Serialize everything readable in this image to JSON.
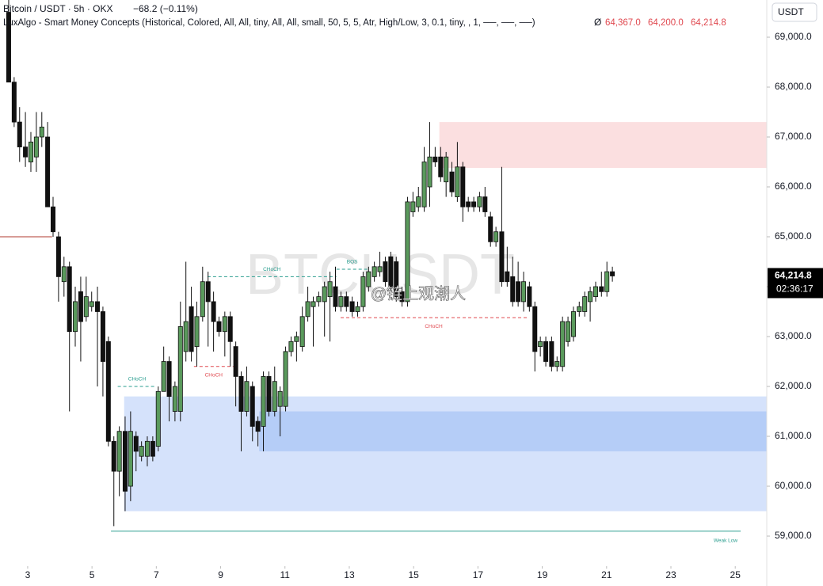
{
  "chart_data": {
    "type": "candlestick",
    "symbol": "Bitcoin / USDT · 5h · OKX",
    "change": "−68.2 (−0.11%)",
    "indicator": "LuxAlgo - Smart Money Concepts (Historical, Colored, All, All, tiny, All, All, small, 50, 5, 5, Atr, High/Low, 3, 0.1, tiny, , 1, ──, ──, ──)",
    "indicator_sign": "Ø",
    "indicator_values": [
      "64,367.0",
      "64,200.0",
      "64,214.8"
    ],
    "currency": "USDT",
    "watermark": "BTCUSDT",
    "credit": "@链上观潮人",
    "up_color": "#5a9a5c",
    "down_color": "#111111",
    "x": [
      2.41,
      2.58,
      2.75,
      2.93,
      3.1,
      3.27,
      3.44,
      3.62,
      3.79,
      3.96,
      4.13,
      4.3,
      4.48,
      4.65,
      4.82,
      4.99,
      5.17,
      5.34,
      5.51,
      5.68,
      5.85,
      6.03,
      6.2,
      6.37,
      6.54,
      6.72,
      6.89,
      7.06,
      7.23,
      7.4,
      7.58,
      7.75,
      7.92,
      8.09,
      8.26,
      8.44,
      8.61,
      8.78,
      8.95,
      9.13,
      9.3,
      9.47,
      9.64,
      9.81,
      9.99,
      10.16,
      10.33,
      10.5,
      10.68,
      10.85,
      11.02,
      11.19,
      11.36,
      11.54,
      11.71,
      11.88,
      12.05,
      12.23,
      12.4,
      12.57,
      12.74,
      12.91,
      13.09,
      13.26,
      13.43,
      13.6,
      13.78,
      13.95,
      14.12,
      14.29,
      14.46,
      14.64,
      14.81,
      14.98,
      15.15,
      15.33,
      15.5,
      15.67,
      15.84,
      16.01,
      16.19,
      16.36,
      16.53,
      16.7,
      16.87,
      17.05,
      17.22,
      17.39,
      17.56,
      17.74,
      17.91,
      18.08,
      18.25,
      18.42,
      18.6,
      18.77,
      18.94,
      19.11,
      19.29,
      19.46,
      19.63,
      19.8,
      19.97,
      20.15,
      20.32,
      20.49,
      20.66,
      20.84,
      21.01,
      21.18
    ],
    "ohlc": [
      [
        69500,
        69746,
        68100,
        68100
      ],
      [
        68100,
        68200,
        67200,
        67300
      ],
      [
        67300,
        67600,
        66500,
        66800
      ],
      [
        66800,
        67500,
        66400,
        66600
      ],
      [
        66500,
        67100,
        66300,
        66900
      ],
      [
        66600,
        67500,
        66300,
        67000
      ],
      [
        67000,
        67500,
        66800,
        67200
      ],
      [
        67000,
        67300,
        65600,
        65600
      ],
      [
        65600,
        65800,
        65000,
        65100
      ],
      [
        65000,
        65100,
        63700,
        64200
      ],
      [
        64100,
        64600,
        63800,
        64400
      ],
      [
        64400,
        64500,
        61500,
        63100
      ],
      [
        63100,
        64000,
        62800,
        63700
      ],
      [
        63900,
        64200,
        62500,
        63300
      ],
      [
        63400,
        64200,
        63300,
        63800
      ],
      [
        63600,
        63900,
        63500,
        63700
      ],
      [
        63700,
        64000,
        62000,
        63500
      ],
      [
        63500,
        63600,
        61800,
        62500
      ],
      [
        62900,
        63000,
        60800,
        60900
      ],
      [
        60900,
        61000,
        59200,
        60300
      ],
      [
        60300,
        61200,
        59800,
        61100
      ],
      [
        61100,
        61400,
        59500,
        59900
      ],
      [
        60000,
        61500,
        59700,
        61100
      ],
      [
        61000,
        61100,
        60300,
        60700
      ],
      [
        60600,
        60900,
        60500,
        60800
      ],
      [
        60600,
        61000,
        60400,
        60900
      ],
      [
        60900,
        61000,
        60500,
        60600
      ],
      [
        60800,
        62000,
        60700,
        61900
      ],
      [
        61900,
        62800,
        61900,
        62500
      ],
      [
        62500,
        62600,
        61300,
        61800
      ],
      [
        61500,
        62100,
        61300,
        62000
      ],
      [
        61500,
        63700,
        61300,
        63200
      ],
      [
        62700,
        64500,
        62500,
        63300
      ],
      [
        63600,
        64000,
        62500,
        62700
      ],
      [
        62800,
        63700,
        62400,
        63400
      ],
      [
        63400,
        64400,
        63300,
        64100
      ],
      [
        64100,
        64300,
        62800,
        63700
      ],
      [
        63700,
        63900,
        62700,
        63300
      ],
      [
        63300,
        63400,
        63000,
        63100
      ],
      [
        63100,
        63500,
        62600,
        63400
      ],
      [
        63400,
        63500,
        62400,
        62900
      ],
      [
        62800,
        62900,
        61600,
        62200
      ],
      [
        62200,
        62300,
        60700,
        61500
      ],
      [
        61500,
        62400,
        61400,
        62100
      ],
      [
        62000,
        62100,
        60900,
        61200
      ],
      [
        61300,
        61400,
        60800,
        61100
      ],
      [
        61200,
        62300,
        60700,
        62200
      ],
      [
        62200,
        62300,
        61400,
        61500
      ],
      [
        61500,
        62400,
        61400,
        62100
      ],
      [
        61600,
        62000,
        61000,
        61900
      ],
      [
        61600,
        62800,
        61500,
        62700
      ],
      [
        62700,
        63000,
        62600,
        62900
      ],
      [
        62900,
        63100,
        62500,
        63000
      ],
      [
        62800,
        63600,
        62700,
        63400
      ],
      [
        63400,
        64000,
        63300,
        63700
      ],
      [
        63600,
        63800,
        62800,
        63700
      ],
      [
        63700,
        63900,
        63600,
        63800
      ],
      [
        63700,
        64100,
        63000,
        64000
      ],
      [
        63800,
        64300,
        62900,
        64100
      ],
      [
        64000,
        64400,
        63500,
        63600
      ],
      [
        63600,
        63900,
        63500,
        63800
      ],
      [
        63800,
        63900,
        63500,
        63600
      ],
      [
        63700,
        63800,
        63400,
        63500
      ],
      [
        63500,
        63700,
        63400,
        63600
      ],
      [
        63600,
        64300,
        63500,
        64200
      ],
      [
        64000,
        64400,
        63900,
        64300
      ],
      [
        64200,
        64500,
        64100,
        64400
      ],
      [
        64300,
        64700,
        64200,
        64400
      ],
      [
        64500,
        64600,
        64000,
        64100
      ],
      [
        64600,
        64700,
        63900,
        64000
      ],
      [
        64500,
        64600,
        63700,
        63800
      ],
      [
        63900,
        64000,
        63600,
        63700
      ],
      [
        63700,
        65800,
        63600,
        65700
      ],
      [
        65500,
        65900,
        65400,
        65700
      ],
      [
        65600,
        66000,
        65500,
        65800
      ],
      [
        65600,
        66800,
        65500,
        66500
      ],
      [
        66000,
        67300,
        65600,
        66600
      ],
      [
        66600,
        66800,
        66400,
        66500
      ],
      [
        66600,
        66800,
        66100,
        66200
      ],
      [
        66100,
        66700,
        65800,
        66600
      ],
      [
        66300,
        66500,
        65800,
        65900
      ],
      [
        65800,
        66900,
        65700,
        66400
      ],
      [
        66400,
        66500,
        65300,
        65600
      ],
      [
        65700,
        65800,
        65500,
        65600
      ],
      [
        65700,
        65800,
        65500,
        65600
      ],
      [
        65600,
        65900,
        65500,
        65800
      ],
      [
        65800,
        66000,
        65400,
        65500
      ],
      [
        65400,
        65500,
        64800,
        64900
      ],
      [
        64900,
        65200,
        64800,
        65100
      ],
      [
        65100,
        66400,
        64000,
        64100
      ],
      [
        64300,
        64800,
        64000,
        64100
      ],
      [
        64200,
        64600,
        63600,
        63700
      ],
      [
        64100,
        64500,
        63600,
        63700
      ],
      [
        63700,
        64300,
        63500,
        64100
      ],
      [
        64000,
        64100,
        63500,
        63600
      ],
      [
        63600,
        63700,
        62300,
        62700
      ],
      [
        62800,
        63000,
        62600,
        62900
      ],
      [
        62900,
        63000,
        62400,
        62500
      ],
      [
        62900,
        63000,
        62300,
        62400
      ],
      [
        62400,
        62600,
        62300,
        62500
      ],
      [
        62400,
        63400,
        62300,
        63300
      ],
      [
        62900,
        63400,
        62800,
        63300
      ],
      [
        63000,
        63600,
        62900,
        63500
      ],
      [
        63500,
        63700,
        63400,
        63600
      ],
      [
        63500,
        63900,
        63400,
        63800
      ],
      [
        63700,
        64000,
        63300,
        63900
      ],
      [
        63800,
        64100,
        63700,
        64000
      ],
      [
        64000,
        64300,
        63800,
        63900
      ],
      [
        63900,
        64500,
        63800,
        64300
      ],
      [
        64300,
        64400,
        64100,
        64214.8
      ]
    ],
    "zones": [
      {
        "top": 67300,
        "bottom": 66380,
        "x0": 15.8,
        "x1": 25.98,
        "color": "#fbdfe0"
      },
      {
        "top": 61800,
        "bottom": 59500,
        "x0": 6.0,
        "x1": 25.98,
        "color": "#d5e2fb"
      },
      {
        "top": 61500,
        "bottom": 60700,
        "x0": 10.2,
        "x1": 25.98,
        "color": "#b5cdf7"
      }
    ],
    "levels": [
      {
        "label": "CHoCH",
        "value": 62000,
        "x0": 5.8,
        "x1": 7.0,
        "color": "#2a9d8f",
        "dash": true
      },
      {
        "label": "CHoCH",
        "value": 64200,
        "x0": 8.59,
        "x1": 12.6,
        "color": "#2a9d8f",
        "dash": true
      },
      {
        "label": "BOS",
        "value": 64350,
        "x0": 12.6,
        "x1": 13.58,
        "color": "#2a9d8f",
        "dash": true
      },
      {
        "label": "CHoCH",
        "value": 62400,
        "x0": 8.17,
        "x1": 9.4,
        "color": "#e0484f",
        "dash": true
      },
      {
        "label": "CHoCH",
        "value": 63380,
        "x0": 12.73,
        "x1": 18.52,
        "color": "#e0484f",
        "dash": true
      },
      {
        "label": "Weak Low",
        "value": 59100,
        "x0": 5.59,
        "x1": 25.17,
        "color": "#2a9d8f",
        "dash": false
      },
      {
        "value": 65000,
        "x0": 2.14,
        "x1": 3.76,
        "color": "#b23a2f",
        "dash": false
      }
    ],
    "last_price": {
      "value": 64214.8,
      "label": "64,214.8"
    },
    "countdown": "02:36:17",
    "xlim": [
      2.14,
      25.98
    ],
    "ylim": [
      58397,
      69746
    ],
    "xticks": [
      3,
      5,
      7,
      9,
      11,
      13,
      15,
      17,
      19,
      21,
      23,
      25
    ],
    "yticks": [
      {
        "value": 59000,
        "label": "59,000.0"
      },
      {
        "value": 60000,
        "label": "60,000.0"
      },
      {
        "value": 61000,
        "label": "61,000.0"
      },
      {
        "value": 62000,
        "label": "62,000.0"
      },
      {
        "value": 63000,
        "label": "63,000.0"
      },
      {
        "value": 64000,
        "label": "64,000.0"
      },
      {
        "value": 65000,
        "label": "65,000.0"
      },
      {
        "value": 66000,
        "label": "66,000.0"
      },
      {
        "value": 67000,
        "label": "67,000.0"
      },
      {
        "value": 68000,
        "label": "68,000.0"
      },
      {
        "value": 69000,
        "label": "69,000.0"
      }
    ]
  }
}
